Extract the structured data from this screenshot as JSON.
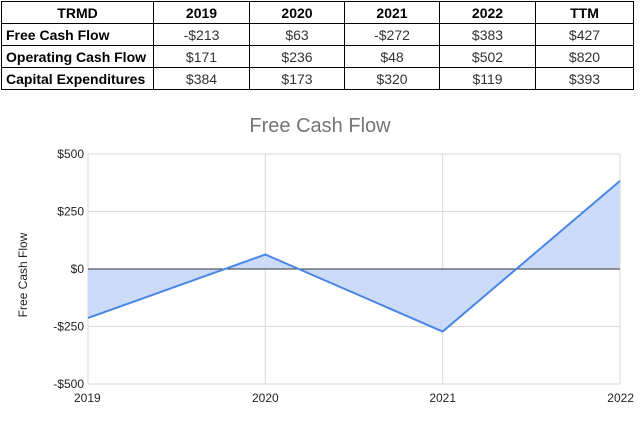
{
  "table": {
    "headers": [
      "TRMD",
      "2019",
      "2020",
      "2021",
      "2022",
      "TTM"
    ],
    "rows": [
      {
        "label": "Free Cash Flow",
        "values": [
          "-$213",
          "$63",
          "-$272",
          "$383",
          "$427"
        ]
      },
      {
        "label": "Operating Cash Flow",
        "values": [
          "$171",
          "$236",
          "$48",
          "$502",
          "$820"
        ]
      },
      {
        "label": "Capital Expenditures",
        "values": [
          "$384",
          "$173",
          "$320",
          "$119",
          "$393"
        ]
      }
    ]
  },
  "chart_data": {
    "type": "area",
    "title": "Free Cash Flow",
    "xlabel": "",
    "ylabel": "Free Cash Flow",
    "categories": [
      "2019",
      "2020",
      "2021",
      "2022"
    ],
    "values": [
      -213,
      63,
      -272,
      383
    ],
    "ylim": [
      -500,
      500
    ],
    "yticks": [
      500,
      250,
      0,
      -250,
      -500
    ],
    "ytick_labels": [
      "$500",
      "$250",
      "$0",
      "-$250",
      "-$500"
    ],
    "grid": true,
    "colors": {
      "line": "#4a86e8",
      "fill": "#c9daf8",
      "grid": "#d9d9d9",
      "zero": "#333333",
      "title": "#757575"
    }
  }
}
